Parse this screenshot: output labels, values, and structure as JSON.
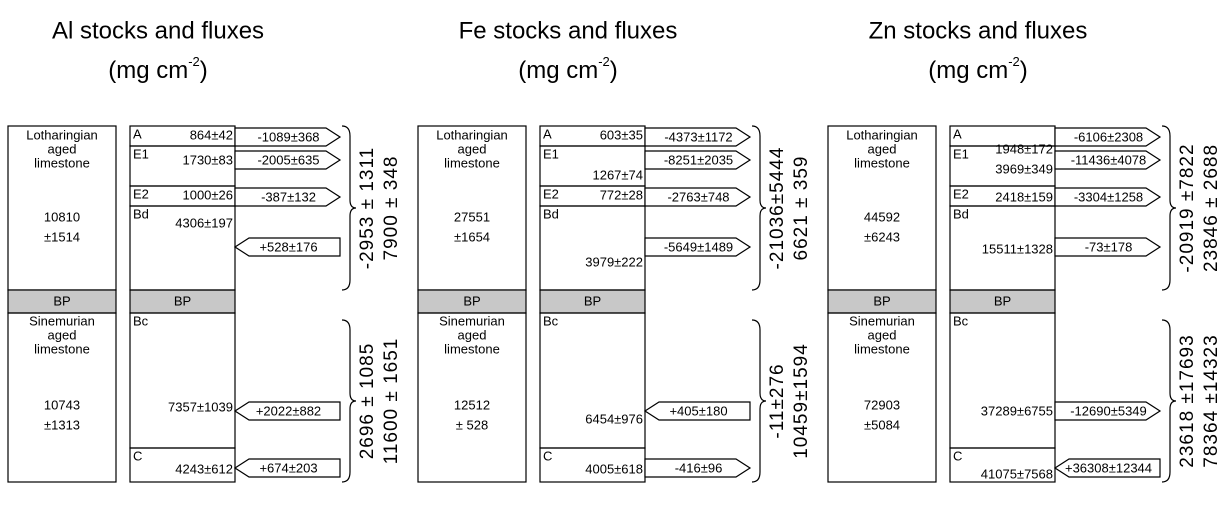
{
  "panels": [
    {
      "title": "Al stocks and fluxes",
      "unit": {
        "pre": "(mg cm",
        "exp": "-2",
        "post": ")"
      },
      "upper_rock": {
        "name_lines": [
          "Lotharingian",
          "aged",
          "limestone"
        ],
        "stock_lines": [
          "10810",
          "±1514"
        ]
      },
      "divider": "BP",
      "lower_rock": {
        "name_lines": [
          "Sinemurian",
          "aged",
          "limestone"
        ],
        "stock_lines": [
          "10743",
          "±1313"
        ]
      },
      "horizons": [
        {
          "label": "A",
          "stock": "864±42",
          "flux": "-1089±368"
        },
        {
          "label": "E1",
          "stock": "1730±83",
          "flux": "-2005±635"
        },
        {
          "label": "E2",
          "stock": "1000±26",
          "flux": "-387±132"
        },
        {
          "label": "Bd",
          "stock": "4306±197",
          "flux": "+528±176"
        },
        {
          "label": "Bc",
          "stock": "7357±1039",
          "flux": "+2022±882"
        },
        {
          "label": "C",
          "stock": "4243±612",
          "flux": "+674±203"
        }
      ],
      "horizon_divider": "BP",
      "totals": [
        {
          "flux": "-2953 ± 1311",
          "stock": "7900 ± 348"
        },
        {
          "flux": "2696 ± 1085",
          "stock": "11600 ± 1651"
        }
      ]
    },
    {
      "title": "Fe stocks and fluxes",
      "unit": {
        "pre": "(mg cm",
        "exp": "-2",
        "post": ")"
      },
      "upper_rock": {
        "name_lines": [
          "Lotharingian",
          "aged",
          "limestone"
        ],
        "stock_lines": [
          "27551",
          "±1654"
        ]
      },
      "divider": "BP",
      "lower_rock": {
        "name_lines": [
          "Sinemurian",
          "aged",
          "limestone"
        ],
        "stock_lines": [
          "12512",
          "± 528"
        ]
      },
      "horizons": [
        {
          "label": "A",
          "stock": "603±35",
          "flux": "-4373±1172"
        },
        {
          "label": "E1",
          "stock": "1267±74",
          "flux": "-8251±2035"
        },
        {
          "label": "E2",
          "stock": "772±28",
          "flux": "-2763±748"
        },
        {
          "label": "Bd",
          "stock": "3979±222",
          "flux": "-5649±1489"
        },
        {
          "label": "Bc",
          "stock": "6454±976",
          "flux": "+405±180"
        },
        {
          "label": "C",
          "stock": "4005±618",
          "flux": "-416±96"
        }
      ],
      "horizon_divider": "BP",
      "totals": [
        {
          "flux": "-21036±5444",
          "stock": "6621 ± 359"
        },
        {
          "flux": "-11±276",
          "stock": "10459±1594"
        }
      ]
    },
    {
      "title": "Zn stocks and fluxes",
      "unit": {
        "pre": "(mg cm",
        "exp": "-2",
        "post": ")"
      },
      "upper_rock": {
        "name_lines": [
          "Lotharingian",
          "aged",
          "limestone"
        ],
        "stock_lines": [
          "44592",
          "±6243"
        ]
      },
      "divider": "BP",
      "lower_rock": {
        "name_lines": [
          "Sinemurian",
          "aged",
          "limestone"
        ],
        "stock_lines": [
          "72903",
          "±5084"
        ]
      },
      "horizons": [
        {
          "label": "A",
          "stock": "1948±172",
          "flux": "-6106±2308"
        },
        {
          "label": "E1",
          "stock": "3969±349",
          "flux": "-11436±4078"
        },
        {
          "label": "E2",
          "stock": "2418±159",
          "flux": "-3304±1258"
        },
        {
          "label": "Bd",
          "stock": "15511±1328",
          "flux": "-73±178"
        },
        {
          "label": "Bc",
          "stock": "37289±6755",
          "flux": "-12690±5349"
        },
        {
          "label": "C",
          "stock": "41075±7568",
          "flux": "+36308±12344"
        }
      ],
      "horizon_divider": "BP",
      "totals": [
        {
          "flux": "-20919 ±7822",
          "stock": "23846 ± 2688"
        },
        {
          "flux": "23618 ±17693",
          "stock": "78364 ±14323"
        }
      ]
    }
  ]
}
